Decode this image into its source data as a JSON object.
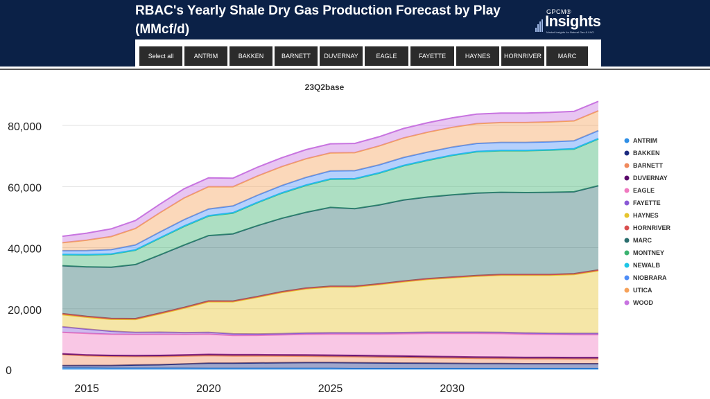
{
  "header": {
    "title": "RBAC's Yearly Shale Dry Gas Production Forecast by Play (MMcf/d)"
  },
  "logo": {
    "small": "GPCM®",
    "big": "Insights",
    "tagline": "Market Insights for Natural Gas & LNG",
    "icon": "bar-chart-icon"
  },
  "tabs": [
    "Select all",
    "ANTRIM",
    "BAKKEN",
    "BARNETT",
    "DUVERNAY",
    "EAGLE",
    "FAYETTE",
    "HAYNES",
    "HORNRIVER",
    "MARC"
  ],
  "colors": {
    "header_bg": "#0b2147",
    "tab_bg": "#2b2b2b"
  },
  "chart_data": {
    "type": "area",
    "stacked": true,
    "title": "23Q2base",
    "x": [
      2014,
      2015,
      2016,
      2017,
      2018,
      2019,
      2020,
      2021,
      2022,
      2023,
      2024,
      2025,
      2026,
      2027,
      2028,
      2029,
      2030,
      2031,
      2032,
      2033,
      2034,
      2035,
      2036
    ],
    "xticks": [
      2015,
      2020,
      2025,
      2030
    ],
    "xticklabels": [
      "2015",
      "2020",
      "2025",
      "2030"
    ],
    "ylim": [
      0,
      90000
    ],
    "yticks": [
      0,
      20000,
      40000,
      60000,
      80000
    ],
    "yticklabels": [
      "0",
      "20,000",
      "40,000",
      "60,000",
      "80,000"
    ],
    "grid": true,
    "legend_position": "right",
    "series": [
      {
        "name": "ANTRIM",
        "color": "#2f8fe6",
        "values": [
          600,
          600,
          550,
          550,
          550,
          550,
          500,
          500,
          500,
          500,
          500,
          500,
          450,
          450,
          450,
          450,
          450,
          450,
          450,
          450,
          450,
          450,
          450
        ]
      },
      {
        "name": "BAKKEN",
        "color": "#1c2b80",
        "values": [
          800,
          850,
          900,
          1050,
          1150,
          1400,
          1700,
          1700,
          1800,
          1850,
          1900,
          1900,
          1900,
          1850,
          1800,
          1750,
          1700,
          1650,
          1650,
          1600,
          1600,
          1600,
          1600
        ]
      },
      {
        "name": "BARNETT",
        "color": "#f08a5d",
        "values": [
          3600,
          3200,
          3000,
          2800,
          2700,
          2600,
          2500,
          2400,
          2300,
          2200,
          2100,
          2000,
          1950,
          1900,
          1850,
          1800,
          1750,
          1700,
          1650,
          1600,
          1600,
          1550,
          1550
        ]
      },
      {
        "name": "DUVERNAY",
        "color": "#5b0a6b",
        "values": [
          300,
          300,
          320,
          320,
          350,
          380,
          400,
          400,
          420,
          420,
          450,
          450,
          450,
          450,
          450,
          450,
          450,
          450,
          450,
          450,
          450,
          450,
          450
        ]
      },
      {
        "name": "EAGLE",
        "color": "#f07ac0",
        "values": [
          7000,
          7000,
          6900,
          6900,
          6900,
          6700,
          6600,
          6300,
          6300,
          6500,
          6700,
          6900,
          7000,
          7100,
          7300,
          7500,
          7600,
          7700,
          7700,
          7600,
          7500,
          7500,
          7500
        ]
      },
      {
        "name": "FAYETTE",
        "color": "#8a5ad6",
        "values": [
          1800,
          1400,
          1000,
          700,
          700,
          600,
          600,
          500,
          450,
          400,
          400,
          400,
          400,
          400,
          400,
          400,
          400,
          400,
          400,
          400,
          400,
          400,
          400
        ]
      },
      {
        "name": "HAYNES",
        "color": "#e6c42e",
        "values": [
          4000,
          3900,
          3900,
          4200,
          6000,
          8000,
          10000,
          10500,
          12000,
          13500,
          14500,
          15000,
          15000,
          15800,
          16600,
          17300,
          17800,
          18300,
          18700,
          18900,
          19000,
          19300,
          20500
        ]
      },
      {
        "name": "HORNRIVER",
        "color": "#d95050",
        "values": [
          300,
          280,
          260,
          250,
          250,
          250,
          250,
          230,
          230,
          230,
          230,
          230,
          230,
          230,
          230,
          230,
          230,
          230,
          230,
          230,
          230,
          230,
          230
        ]
      },
      {
        "name": "MARC",
        "color": "#2a6e6e",
        "values": [
          15700,
          16200,
          16800,
          17700,
          19000,
          20400,
          21400,
          22000,
          23200,
          24000,
          24800,
          25800,
          25400,
          25800,
          26500,
          26700,
          26900,
          27000,
          26900,
          26800,
          26900,
          26800,
          27600
        ]
      },
      {
        "name": "MONTNEY",
        "color": "#3cb371",
        "values": [
          3600,
          3900,
          4200,
          4700,
          5500,
          6100,
          6400,
          6800,
          7500,
          8200,
          8800,
          9200,
          9700,
          10400,
          11200,
          12000,
          12900,
          13500,
          13600,
          13700,
          13800,
          14000,
          15300
        ]
      },
      {
        "name": "NEWALB",
        "color": "#1ec6e6",
        "values": [
          120,
          120,
          120,
          120,
          120,
          120,
          120,
          120,
          120,
          120,
          120,
          120,
          120,
          120,
          120,
          120,
          120,
          120,
          120,
          120,
          120,
          120,
          120
        ]
      },
      {
        "name": "NIOBRARA",
        "color": "#4f8ef7",
        "values": [
          1200,
          1300,
          1400,
          1600,
          1900,
          2100,
          2200,
          2200,
          2300,
          2400,
          2500,
          2600,
          2600,
          2600,
          2600,
          2600,
          2600,
          2600,
          2600,
          2600,
          2600,
          2600,
          2600
        ]
      },
      {
        "name": "UTICA",
        "color": "#f6a25a",
        "values": [
          2600,
          3400,
          4300,
          5400,
          6300,
          7100,
          7300,
          6300,
          6300,
          6200,
          6100,
          5900,
          5900,
          6200,
          6400,
          6500,
          6500,
          6500,
          6500,
          6500,
          6500,
          6500,
          6500
        ]
      },
      {
        "name": "WOOD",
        "color": "#c874e0",
        "values": [
          2100,
          2300,
          2500,
          2600,
          2800,
          3000,
          2900,
          2800,
          2900,
          2900,
          3000,
          3000,
          3000,
          3000,
          3100,
          3100,
          3100,
          3100,
          3100,
          3100,
          3100,
          3100,
          3100
        ]
      }
    ]
  }
}
